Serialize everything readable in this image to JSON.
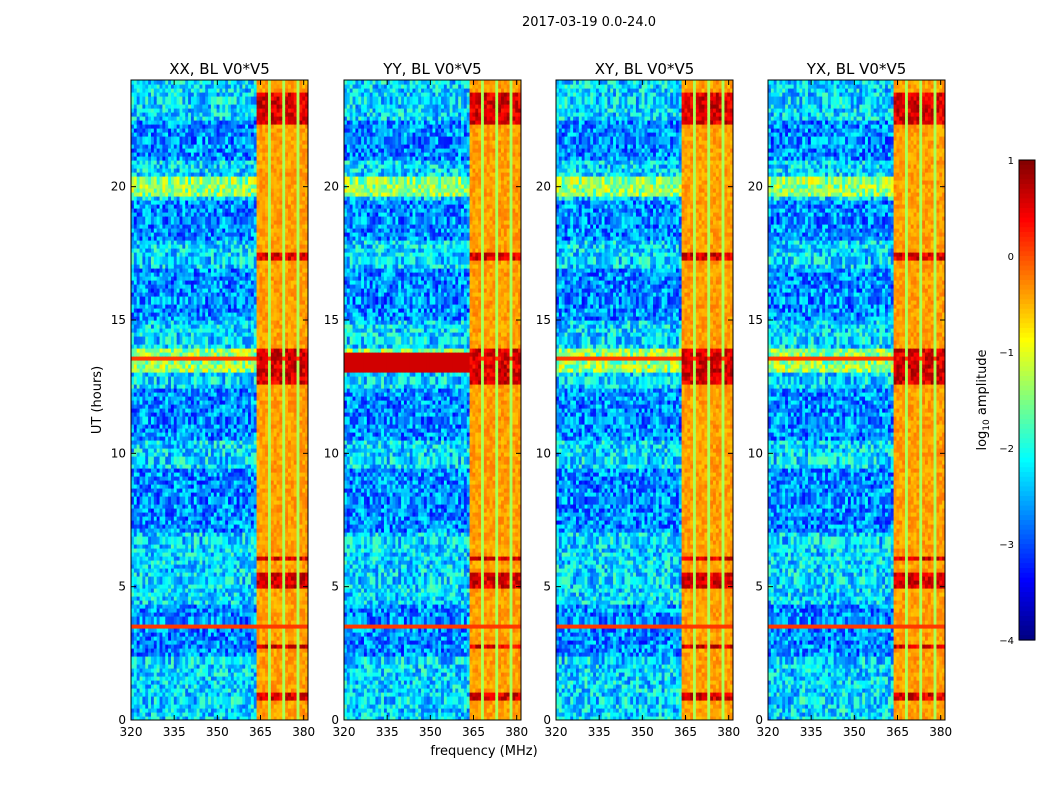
{
  "chart_data": {
    "type": "heatmap",
    "suptitle": "2017-03-19 0.0-24.0",
    "xlabel": "frequency (MHz)",
    "ylabel": "UT (hours)",
    "xlim": [
      320,
      381.5
    ],
    "ylim": [
      0,
      24
    ],
    "xticks": [
      320,
      335,
      350,
      365,
      380
    ],
    "yticks": [
      0,
      5,
      10,
      15,
      20
    ],
    "panels": [
      {
        "title": "XX, BL V0*V5",
        "polarization": "XX",
        "yy_band_extended": false
      },
      {
        "title": "YY, BL V0*V5",
        "polarization": "YY",
        "yy_band_extended": true
      },
      {
        "title": "XY, BL V0*V5",
        "polarization": "XY",
        "yy_band_extended": false
      },
      {
        "title": "YX, BL V0*V5",
        "polarization": "YX",
        "yy_band_extended": false
      }
    ],
    "colorbar": {
      "label_prefix": "log",
      "label_sub": "10",
      "label_suffix": " amplitude",
      "range": [
        -4,
        1
      ],
      "ticks": [
        "1",
        "0",
        "−1",
        "−2",
        "−3",
        "−4"
      ],
      "colormap": "jet"
    },
    "features": {
      "strong_band_mhz": [
        363.5,
        381.5
      ],
      "band_subchannels_mhz": [
        [
          363.5,
          368.0
        ],
        [
          368.7,
          373.0
        ],
        [
          373.7,
          377.8
        ],
        [
          378.5,
          381.5
        ]
      ],
      "band_bright_hours": [
        [
          0.8,
          1.0
        ],
        [
          2.7,
          2.9
        ],
        [
          4.9,
          5.5
        ],
        [
          6.0,
          6.2
        ],
        [
          12.6,
          14.0
        ],
        [
          17.2,
          17.6
        ],
        [
          22.3,
          23.6
        ]
      ],
      "broadband_rfi_hours": [
        3.5,
        5.4,
        12.6,
        13.55,
        22.95
      ],
      "quiet_low_hours": [
        [
          2.4,
          4.4
        ],
        [
          7.0,
          9.5
        ],
        [
          10.5,
          12.4
        ],
        [
          15.0,
          17.0
        ],
        [
          18.0,
          19.5
        ],
        [
          21.0,
          22.5
        ]
      ],
      "elevated_low_hours": [
        [
          19.6,
          20.4
        ],
        [
          13.0,
          14.0
        ]
      ],
      "value_range": [
        -4,
        1
      ]
    }
  }
}
